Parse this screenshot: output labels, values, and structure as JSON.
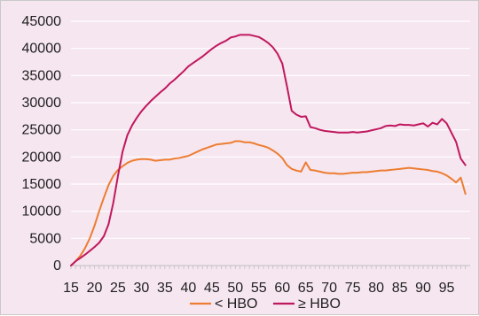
{
  "chart_data": {
    "type": "line",
    "title": "",
    "xlabel": "",
    "ylabel": "",
    "xlim": [
      15,
      100
    ],
    "ylim": [
      0,
      45000
    ],
    "x_ticks": [
      15,
      20,
      25,
      30,
      35,
      40,
      45,
      50,
      55,
      60,
      65,
      70,
      75,
      80,
      85,
      90,
      95
    ],
    "y_ticks": [
      0,
      5000,
      10000,
      15000,
      20000,
      25000,
      30000,
      35000,
      40000,
      45000
    ],
    "grid": "horizontal",
    "legend_position": "bottom",
    "series": [
      {
        "name": "< HBO",
        "color": "#ed7d31",
        "points": [
          [
            15,
            0
          ],
          [
            16,
            800
          ],
          [
            17,
            1800
          ],
          [
            18,
            3200
          ],
          [
            19,
            5000
          ],
          [
            20,
            7300
          ],
          [
            21,
            10000
          ],
          [
            22,
            12500
          ],
          [
            23,
            14800
          ],
          [
            24,
            16500
          ],
          [
            25,
            17600
          ],
          [
            26,
            18300
          ],
          [
            27,
            18900
          ],
          [
            28,
            19300
          ],
          [
            29,
            19500
          ],
          [
            30,
            19600
          ],
          [
            31,
            19600
          ],
          [
            32,
            19500
          ],
          [
            33,
            19300
          ],
          [
            34,
            19400
          ],
          [
            35,
            19500
          ],
          [
            36,
            19500
          ],
          [
            37,
            19700
          ],
          [
            38,
            19800
          ],
          [
            39,
            20000
          ],
          [
            40,
            20200
          ],
          [
            41,
            20600
          ],
          [
            42,
            21000
          ],
          [
            43,
            21400
          ],
          [
            44,
            21700
          ],
          [
            45,
            22000
          ],
          [
            46,
            22300
          ],
          [
            47,
            22400
          ],
          [
            48,
            22500
          ],
          [
            49,
            22600
          ],
          [
            50,
            22900
          ],
          [
            51,
            22900
          ],
          [
            52,
            22700
          ],
          [
            53,
            22700
          ],
          [
            54,
            22500
          ],
          [
            55,
            22200
          ],
          [
            56,
            22000
          ],
          [
            57,
            21700
          ],
          [
            58,
            21200
          ],
          [
            59,
            20600
          ],
          [
            60,
            19800
          ],
          [
            61,
            18500
          ],
          [
            62,
            17800
          ],
          [
            63,
            17500
          ],
          [
            64,
            17300
          ],
          [
            65,
            19000
          ],
          [
            66,
            17600
          ],
          [
            67,
            17500
          ],
          [
            68,
            17300
          ],
          [
            69,
            17100
          ],
          [
            70,
            17000
          ],
          [
            71,
            17000
          ],
          [
            72,
            16900
          ],
          [
            73,
            16900
          ],
          [
            74,
            17000
          ],
          [
            75,
            17100
          ],
          [
            76,
            17100
          ],
          [
            77,
            17200
          ],
          [
            78,
            17200
          ],
          [
            79,
            17300
          ],
          [
            80,
            17400
          ],
          [
            81,
            17500
          ],
          [
            82,
            17500
          ],
          [
            83,
            17600
          ],
          [
            84,
            17700
          ],
          [
            85,
            17800
          ],
          [
            86,
            17900
          ],
          [
            87,
            18000
          ],
          [
            88,
            17900
          ],
          [
            89,
            17800
          ],
          [
            90,
            17700
          ],
          [
            91,
            17600
          ],
          [
            92,
            17400
          ],
          [
            93,
            17300
          ],
          [
            94,
            17000
          ],
          [
            95,
            16600
          ],
          [
            96,
            16000
          ],
          [
            97,
            15300
          ],
          [
            98,
            16200
          ],
          [
            99,
            13200
          ]
        ]
      },
      {
        "name": "≥ HBO",
        "color": "#c0185e",
        "points": [
          [
            15,
            0
          ],
          [
            16,
            800
          ],
          [
            17,
            1400
          ],
          [
            18,
            2000
          ],
          [
            19,
            2700
          ],
          [
            20,
            3400
          ],
          [
            21,
            4200
          ],
          [
            22,
            5400
          ],
          [
            23,
            7600
          ],
          [
            24,
            11500
          ],
          [
            25,
            16500
          ],
          [
            26,
            21000
          ],
          [
            27,
            24000
          ],
          [
            28,
            25800
          ],
          [
            29,
            27200
          ],
          [
            30,
            28400
          ],
          [
            31,
            29400
          ],
          [
            32,
            30300
          ],
          [
            33,
            31100
          ],
          [
            34,
            31900
          ],
          [
            35,
            32600
          ],
          [
            36,
            33500
          ],
          [
            37,
            34200
          ],
          [
            38,
            35000
          ],
          [
            39,
            35800
          ],
          [
            40,
            36700
          ],
          [
            41,
            37300
          ],
          [
            42,
            37900
          ],
          [
            43,
            38500
          ],
          [
            44,
            39200
          ],
          [
            45,
            39900
          ],
          [
            46,
            40500
          ],
          [
            47,
            41000
          ],
          [
            48,
            41400
          ],
          [
            49,
            42000
          ],
          [
            50,
            42200
          ],
          [
            51,
            42500
          ],
          [
            52,
            42500
          ],
          [
            53,
            42500
          ],
          [
            54,
            42300
          ],
          [
            55,
            42100
          ],
          [
            56,
            41600
          ],
          [
            57,
            41000
          ],
          [
            58,
            40200
          ],
          [
            59,
            39000
          ],
          [
            60,
            37200
          ],
          [
            61,
            33000
          ],
          [
            62,
            28500
          ],
          [
            63,
            27800
          ],
          [
            64,
            27400
          ],
          [
            65,
            27500
          ],
          [
            66,
            25500
          ],
          [
            67,
            25300
          ],
          [
            68,
            25000
          ],
          [
            69,
            24800
          ],
          [
            70,
            24700
          ],
          [
            71,
            24600
          ],
          [
            72,
            24500
          ],
          [
            73,
            24500
          ],
          [
            74,
            24500
          ],
          [
            75,
            24600
          ],
          [
            76,
            24500
          ],
          [
            77,
            24600
          ],
          [
            78,
            24700
          ],
          [
            79,
            24900
          ],
          [
            80,
            25100
          ],
          [
            81,
            25300
          ],
          [
            82,
            25700
          ],
          [
            83,
            25800
          ],
          [
            84,
            25700
          ],
          [
            85,
            26000
          ],
          [
            86,
            25900
          ],
          [
            87,
            25900
          ],
          [
            88,
            25800
          ],
          [
            89,
            26000
          ],
          [
            90,
            26200
          ],
          [
            91,
            25600
          ],
          [
            92,
            26300
          ],
          [
            93,
            26000
          ],
          [
            94,
            27000
          ],
          [
            95,
            26200
          ],
          [
            96,
            24500
          ],
          [
            97,
            22800
          ],
          [
            98,
            19700
          ],
          [
            99,
            18500
          ]
        ]
      }
    ]
  }
}
